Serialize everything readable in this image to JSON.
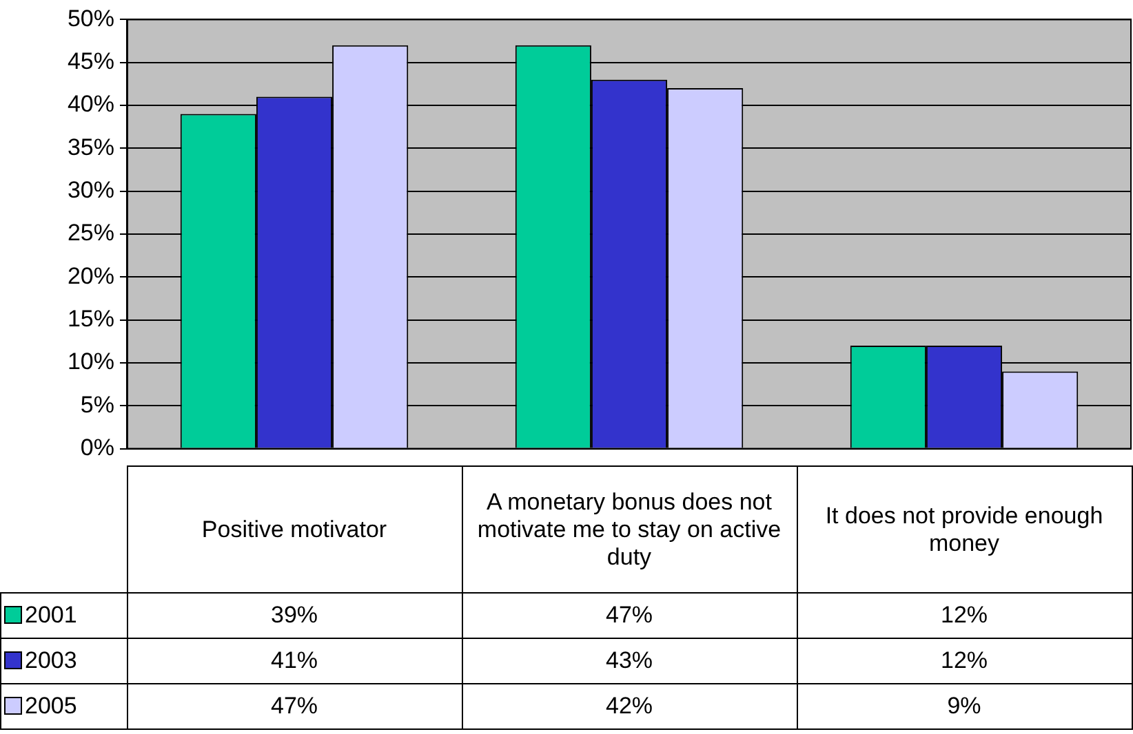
{
  "chart_data": {
    "type": "bar",
    "categories": [
      "Positive motivator",
      "A monetary bonus does not motivate me to stay on active duty",
      "It does not provide enough money"
    ],
    "series": [
      {
        "name": "2001",
        "color": "#00cc99",
        "values": [
          39,
          47,
          12
        ],
        "value_labels": [
          "39%",
          "47%",
          "12%"
        ]
      },
      {
        "name": "2003",
        "color": "#3333cc",
        "values": [
          41,
          43,
          12
        ],
        "value_labels": [
          "41%",
          "43%",
          "12%"
        ]
      },
      {
        "name": "2005",
        "color": "#ccccff",
        "values": [
          47,
          42,
          9
        ],
        "value_labels": [
          "47%",
          "42%",
          "9%"
        ]
      }
    ],
    "ylim": [
      0,
      50
    ],
    "yticks": [
      {
        "value": 0,
        "label": "0%"
      },
      {
        "value": 5,
        "label": "5%"
      },
      {
        "value": 10,
        "label": "10%"
      },
      {
        "value": 15,
        "label": "15%"
      },
      {
        "value": 20,
        "label": "20%"
      },
      {
        "value": 25,
        "label": "25%"
      },
      {
        "value": 30,
        "label": "30%"
      },
      {
        "value": 35,
        "label": "35%"
      },
      {
        "value": 40,
        "label": "40%"
      },
      {
        "value": 45,
        "label": "45%"
      },
      {
        "value": 50,
        "label": "50%"
      }
    ],
    "grid": "y",
    "legend": "bottom left"
  }
}
